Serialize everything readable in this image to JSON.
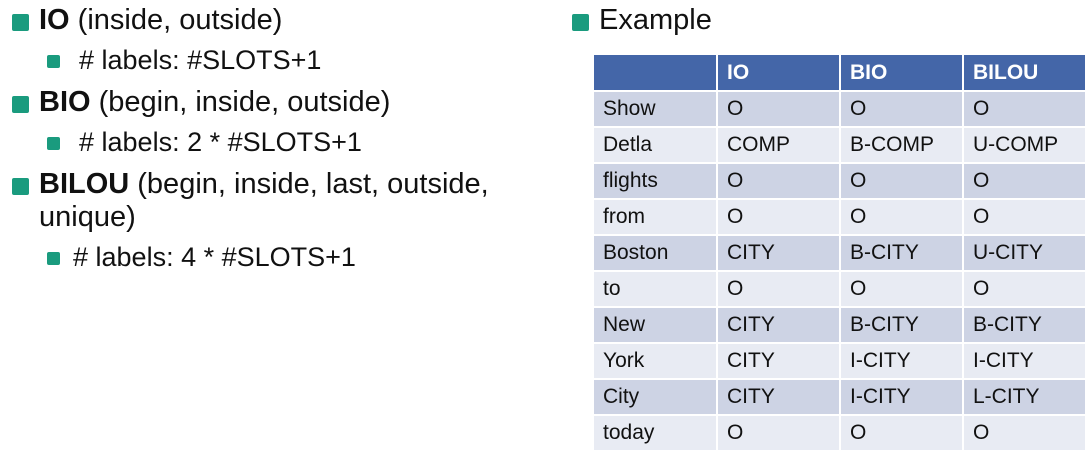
{
  "bullets": [
    {
      "term": "IO",
      "description": " (inside, outside)",
      "sub": "# labels: #SLOTS+1"
    },
    {
      "term": "BIO",
      "description": " (begin, inside, outside)",
      "sub": "# labels: 2 * #SLOTS+1"
    },
    {
      "term": "BILOU",
      "description": " (begin, inside, last, outside, unique)",
      "sub": "# labels: 4 * #SLOTS+1"
    }
  ],
  "example": {
    "heading": "Example",
    "columns": [
      "",
      "IO",
      "BIO",
      "BILOU"
    ],
    "rows": [
      [
        "Show",
        "O",
        "O",
        "O"
      ],
      [
        "Detla",
        "COMP",
        "B-COMP",
        "U-COMP"
      ],
      [
        "flights",
        "O",
        "O",
        "O"
      ],
      [
        "from",
        "O",
        "O",
        "O"
      ],
      [
        "Boston",
        "CITY",
        "B-CITY",
        "U-CITY"
      ],
      [
        "to",
        "O",
        "O",
        "O"
      ],
      [
        "New",
        "CITY",
        "B-CITY",
        "B-CITY"
      ],
      [
        "York",
        "CITY",
        "I-CITY",
        "I-CITY"
      ],
      [
        "City",
        "CITY",
        "I-CITY",
        "L-CITY"
      ],
      [
        "today",
        "O",
        "O",
        "O"
      ]
    ]
  },
  "colors": {
    "bullet": "#1a9b7e",
    "table_header": "#4466a8",
    "row_dark": "#cdd3e4",
    "row_light": "#e8ebf3"
  }
}
